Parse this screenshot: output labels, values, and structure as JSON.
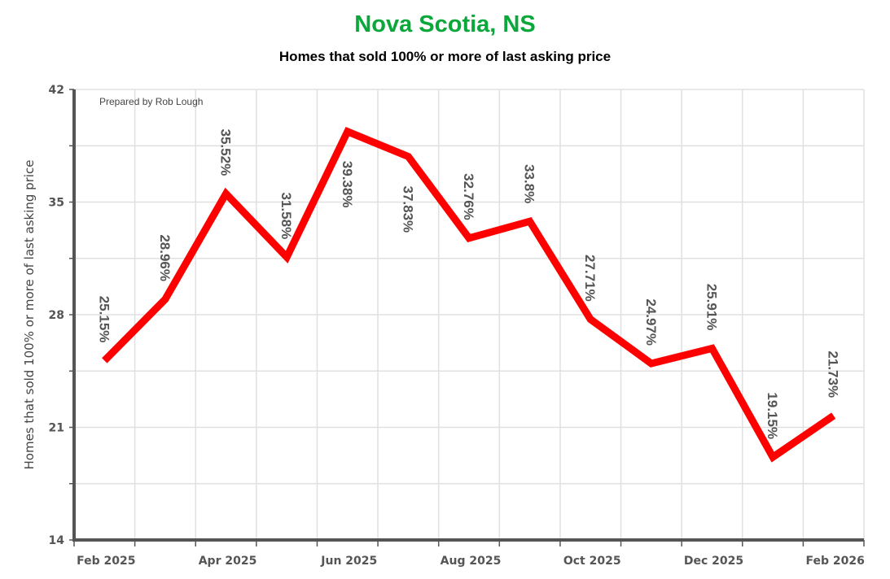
{
  "header": {
    "title": "Nova Scotia, NS",
    "subtitle": "Homes that sold 100% or more of last asking price"
  },
  "credit": "Prepared by Rob Lough",
  "colors": {
    "title": "#0aa83a",
    "line": "#ff0000",
    "axis": "#555555",
    "grid": "#e0e0e0"
  },
  "chart_data": {
    "type": "line",
    "title": "Nova Scotia, NS",
    "subtitle": "Homes that sold 100% or more of last asking price",
    "xlabel": "",
    "ylabel": "Homes that sold 100% or more of last asking price",
    "ylim": [
      14,
      42
    ],
    "yticks": [
      14,
      21,
      28,
      35,
      42
    ],
    "xtick_labels": [
      "Feb 2025",
      "Apr 2025",
      "Jun 2025",
      "Aug 2025",
      "Oct 2025",
      "Dec 2025",
      "Feb 2026"
    ],
    "grid": true,
    "legend": "none",
    "annotation": "Prepared by Rob Lough",
    "categories": [
      "Feb 2025",
      "Mar 2025",
      "Apr 2025",
      "May 2025",
      "Jun 2025",
      "Jul 2025",
      "Aug 2025",
      "Sep 2025",
      "Oct 2025",
      "Nov 2025",
      "Dec 2025",
      "Jan 2026",
      "Feb 2026"
    ],
    "series": [
      {
        "name": "Homes that sold 100% or more of last asking price",
        "values": [
          25.15,
          28.96,
          35.52,
          31.58,
          39.38,
          37.83,
          32.76,
          33.8,
          27.71,
          24.97,
          25.91,
          19.15,
          21.73
        ],
        "labels": [
          "25.15%",
          "28.96%",
          "35.52%",
          "31.58%",
          "39.38%",
          "37.83%",
          "32.76%",
          "33.8%",
          "27.71%",
          "24.97%",
          "25.91%",
          "19.15%",
          "21.73%"
        ]
      }
    ]
  }
}
